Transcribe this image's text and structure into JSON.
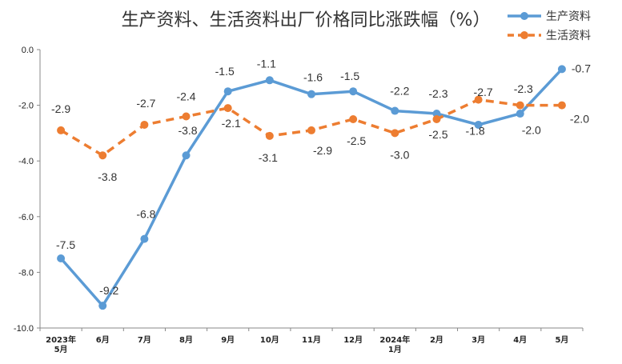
{
  "chart_data": {
    "type": "line",
    "title": "生产资料、生活资料出厂价格同比涨跌幅（%）",
    "categories": [
      "2023年\n5月",
      "6月",
      "7月",
      "8月",
      "9月",
      "10月",
      "11月",
      "12月",
      "2024年\n1月",
      "2月",
      "3月",
      "4月",
      "5月"
    ],
    "ylim": [
      -10.0,
      0.0
    ],
    "yticks": [
      "0.0",
      "-2.0",
      "-4.0",
      "-6.0",
      "-8.0",
      "-10.0"
    ],
    "legend_position": "top-right",
    "series": [
      {
        "name": "生产资料",
        "color": "#5b9bd5",
        "style": "solid",
        "values": [
          -7.5,
          -9.2,
          -6.8,
          -3.8,
          -1.5,
          -1.1,
          -1.6,
          -1.5,
          -2.2,
          -2.3,
          -2.7,
          -2.3,
          -0.7
        ],
        "labels": [
          "-7.5",
          "-9.2",
          "-6.8",
          "-3.8",
          "-1.5",
          "-1.1",
          "-1.6",
          "-1.5",
          "-2.2",
          "-2.3",
          "-2.7",
          "-2.3",
          "-0.7"
        ]
      },
      {
        "name": "生活资料",
        "color": "#ed7d31",
        "style": "dashed",
        "values": [
          -2.9,
          -3.8,
          -2.7,
          -2.4,
          -2.1,
          -3.1,
          -2.9,
          -2.5,
          -3.0,
          -2.5,
          -1.8,
          -2.0,
          -2.0
        ],
        "labels": [
          "-2.9",
          "-3.8",
          "-2.7",
          "-2.4",
          "-2.1",
          "-3.1",
          "-2.9",
          "-2.5",
          "-3.0",
          "-2.5",
          "-1.8",
          "-2.0",
          "-2.0"
        ]
      }
    ]
  }
}
